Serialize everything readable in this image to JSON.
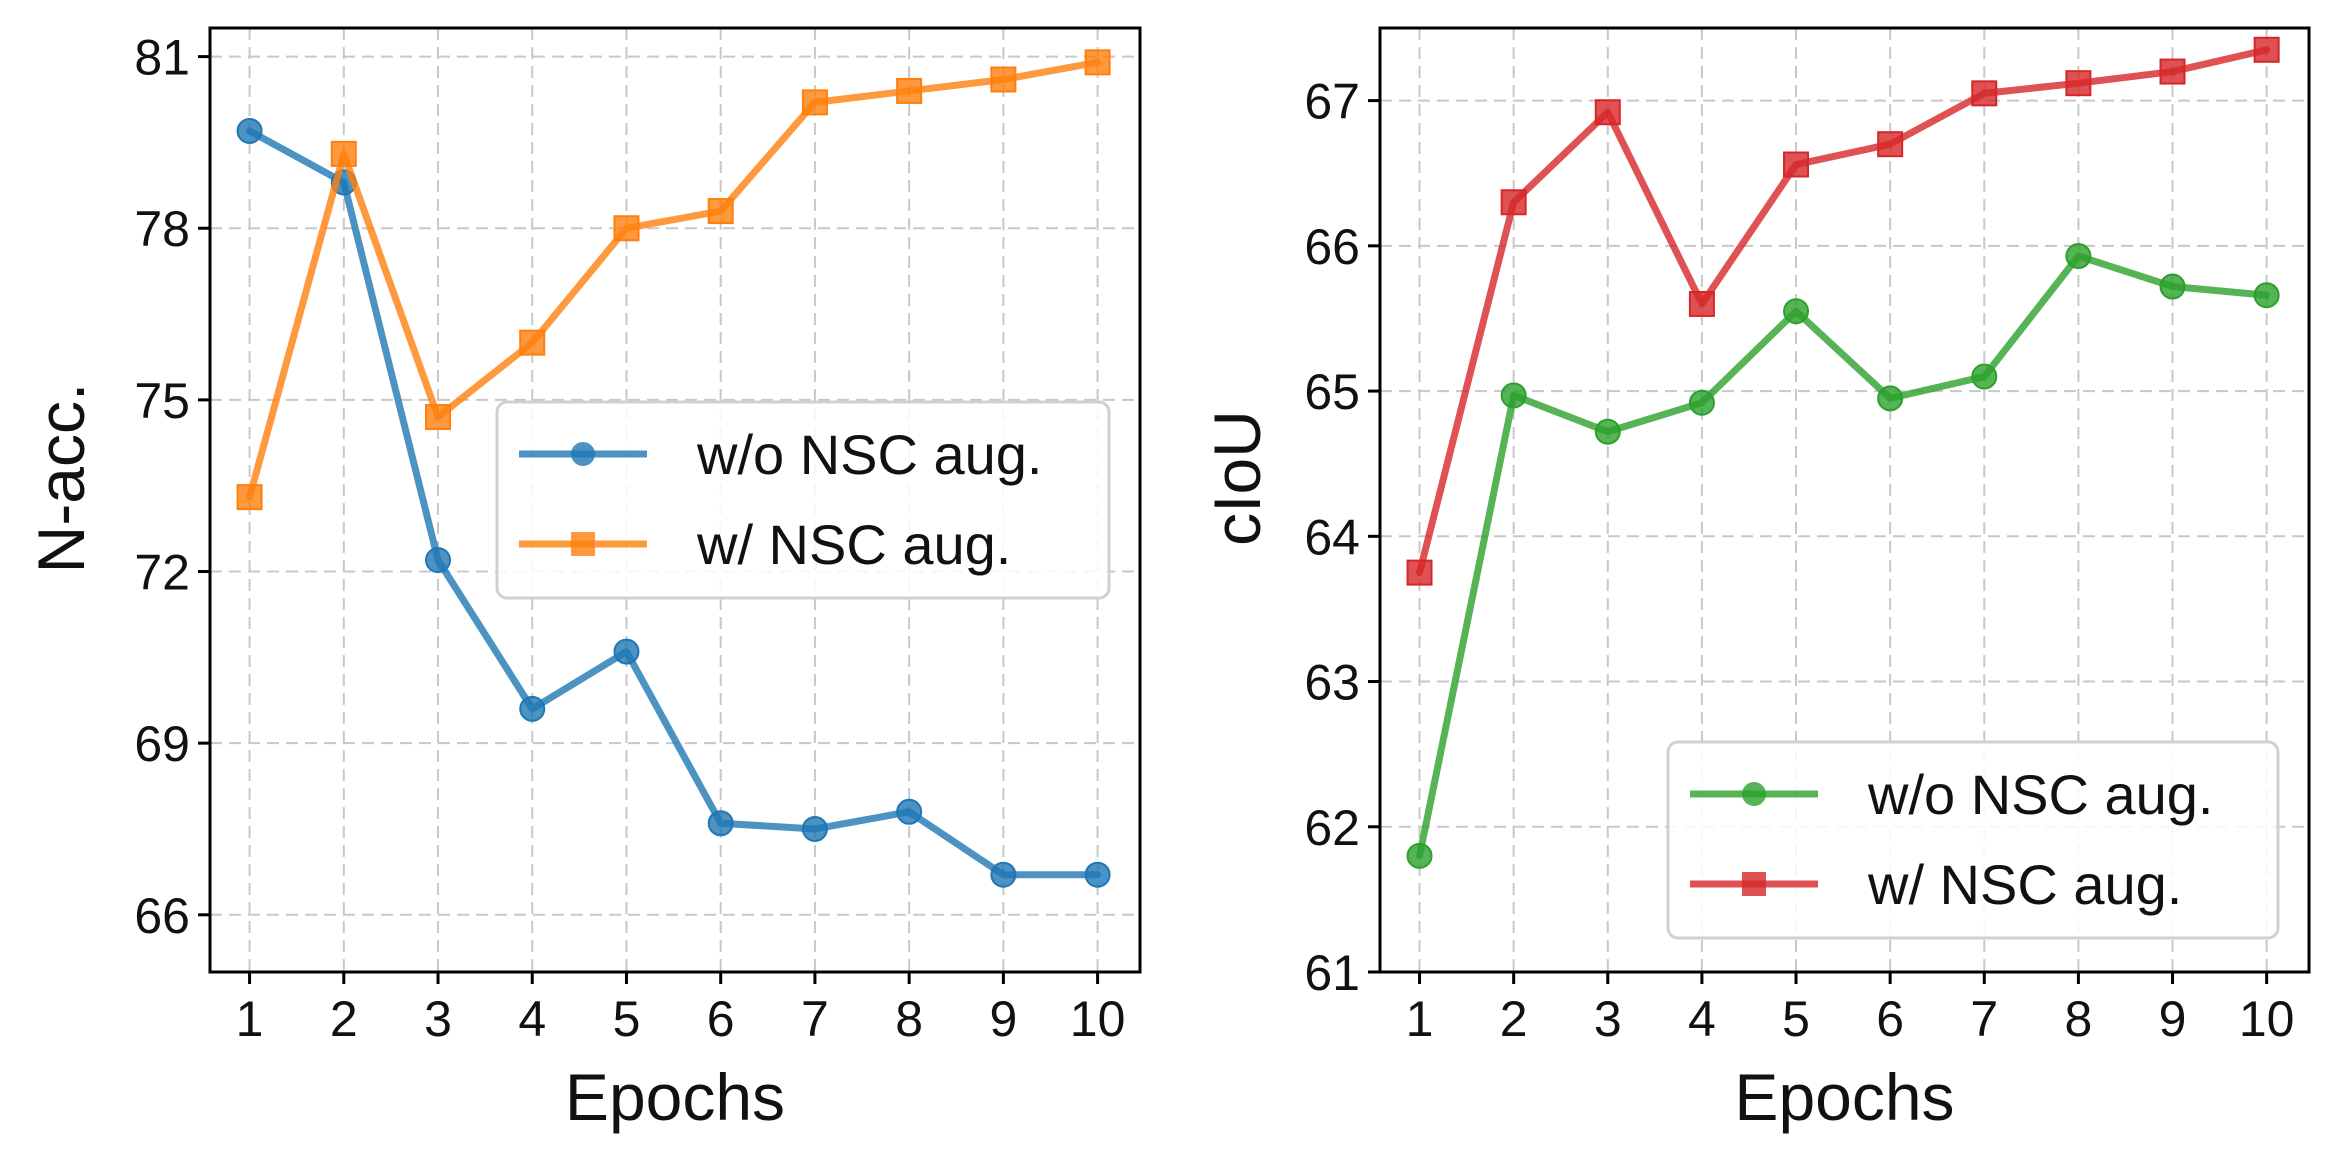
{
  "chart_data": [
    {
      "type": "line",
      "xlabel": "Epochs",
      "ylabel": "N-acc.",
      "x": [
        1,
        2,
        3,
        4,
        5,
        6,
        7,
        8,
        9,
        10
      ],
      "xticks": [
        "1",
        "2",
        "3",
        "4",
        "5",
        "6",
        "7",
        "8",
        "9",
        "10"
      ],
      "yticks": [
        66,
        69,
        72,
        75,
        78,
        81
      ],
      "ytick_labels": [
        "66",
        "69",
        "72",
        "75",
        "78",
        "81"
      ],
      "xlim": [
        0.58,
        10.45
      ],
      "ylim": [
        65,
        81.5
      ],
      "grid": true,
      "legend_position": "center-right",
      "series": [
        {
          "name": "w/o NSC aug.",
          "color": "#1f77b4",
          "marker": "circle",
          "values": [
            79.7,
            78.8,
            72.2,
            69.6,
            70.6,
            67.6,
            67.5,
            67.8,
            66.7,
            66.7
          ]
        },
        {
          "name": "w/ NSC aug.",
          "color": "#ff7f0e",
          "marker": "square",
          "values": [
            73.3,
            79.3,
            74.7,
            76.0,
            78.0,
            78.3,
            80.2,
            80.4,
            80.6,
            80.9
          ]
        }
      ]
    },
    {
      "type": "line",
      "xlabel": "Epochs",
      "ylabel": "cIoU",
      "x": [
        1,
        2,
        3,
        4,
        5,
        6,
        7,
        8,
        9,
        10
      ],
      "xticks": [
        "1",
        "2",
        "3",
        "4",
        "5",
        "6",
        "7",
        "8",
        "9",
        "10"
      ],
      "yticks": [
        61,
        62,
        63,
        64,
        65,
        66,
        67
      ],
      "ytick_labels": [
        "61",
        "62",
        "63",
        "64",
        "65",
        "66",
        "67"
      ],
      "xlim": [
        0.58,
        10.45
      ],
      "ylim": [
        61,
        67.5
      ],
      "grid": true,
      "legend_position": "lower-right",
      "series": [
        {
          "name": "w/o NSC aug.",
          "color": "#2ca02c",
          "marker": "circle",
          "values": [
            61.8,
            64.97,
            64.72,
            64.92,
            65.55,
            64.95,
            65.1,
            65.93,
            65.72,
            65.66
          ]
        },
        {
          "name": "w/ NSC aug.",
          "color": "#d62728",
          "marker": "square",
          "values": [
            63.75,
            66.3,
            66.92,
            65.6,
            66.56,
            66.7,
            67.05,
            67.12,
            67.2,
            67.35
          ]
        }
      ]
    }
  ]
}
